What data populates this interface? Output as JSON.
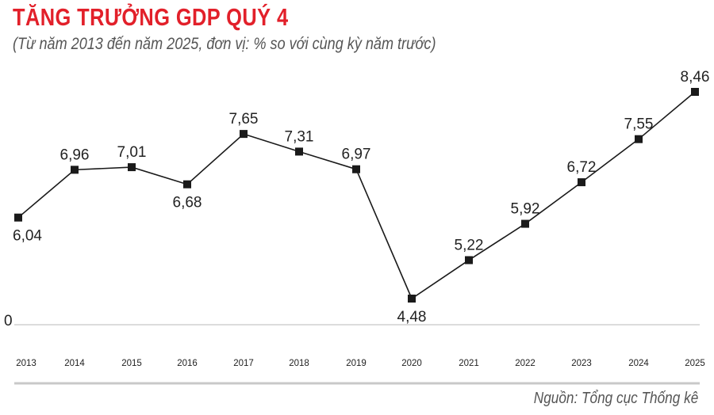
{
  "title": "TĂNG TRƯỞNG GDP QUÝ 4",
  "subtitle": "(Từ năm 2013 đến năm 2025, đơn vị: % so với cùng kỳ năm trước)",
  "source": "Nguồn: Tổng cục Thống kê",
  "chart_data": {
    "type": "line",
    "title": "TĂNG TRƯỞNG GDP QUÝ 4",
    "xlabel": "",
    "ylabel": "",
    "y_baseline_label": "0",
    "grid": false,
    "categories": [
      "2013",
      "2014",
      "2015",
      "2016",
      "2017",
      "2018",
      "2019",
      "2020",
      "2021",
      "2022",
      "2023",
      "2024",
      "2025"
    ],
    "value_labels": [
      "6,04",
      "6,96",
      "7,01",
      "6,68",
      "7,65",
      "7,31",
      "6,97",
      "4,48",
      "5,22",
      "5,92",
      "6,72",
      "7,55",
      "8,46"
    ],
    "series": [
      {
        "values": [
          6.04,
          6.96,
          7.01,
          6.68,
          7.65,
          7.31,
          6.97,
          4.48,
          5.22,
          5.92,
          6.72,
          7.55,
          8.46
        ]
      }
    ],
    "line_color": "#1a1a1a",
    "highlight_color": "#e2202a"
  }
}
